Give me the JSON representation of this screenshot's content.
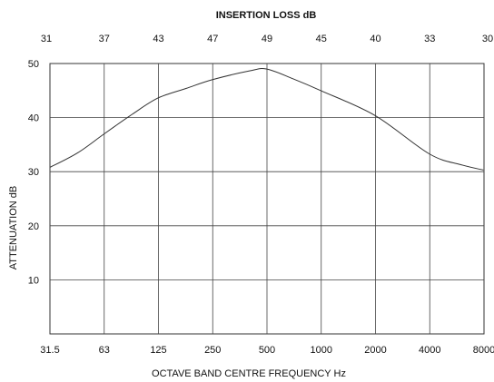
{
  "chart_data": {
    "type": "line",
    "top_axis_title": "INSERTION LOSS dB",
    "top_axis_labels": [
      "31",
      "37",
      "43",
      "47",
      "49",
      "45",
      "40",
      "33",
      "30"
    ],
    "xlabel": "OCTAVE BAND CENTRE FREQUENCY Hz",
    "ylabel": "ATTENUATION dB",
    "categories": [
      "31.5",
      "63",
      "125",
      "250",
      "500",
      "1000",
      "2000",
      "4000",
      "8000"
    ],
    "y_ticks": [
      "10",
      "20",
      "30",
      "40",
      "50"
    ],
    "ylim": [
      0,
      50
    ],
    "grid": true,
    "series": [
      {
        "x": [
          31.5,
          45,
          63,
          90,
          125,
          180,
          250,
          400,
          500,
          700,
          1000,
          2000,
          4000,
          6000,
          8000
        ],
        "values": [
          30.8,
          33.5,
          37,
          40.6,
          43.6,
          45.4,
          47,
          48.6,
          49,
          47.2,
          45,
          40.4,
          33.3,
          31.3,
          30.3
        ]
      }
    ]
  }
}
